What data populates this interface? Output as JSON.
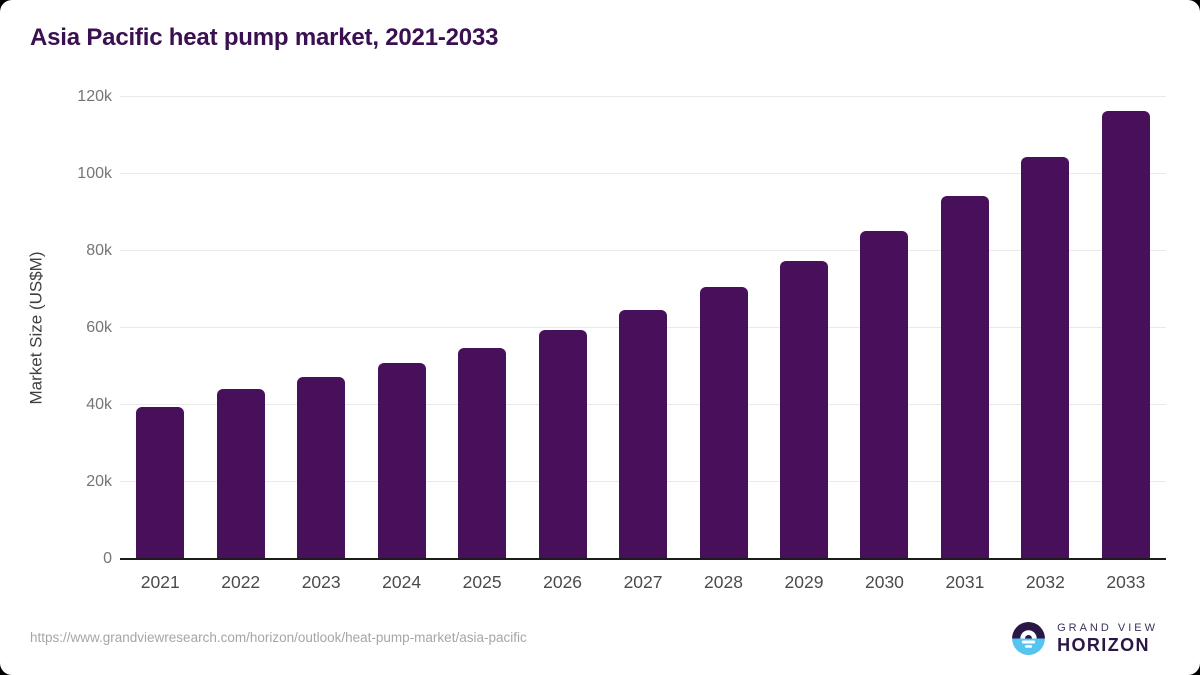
{
  "page": {
    "title": "Asia Pacific heat pump market, 2021-2033",
    "source_url": "https://www.grandviewresearch.com/horizon/outlook/heat-pump-market/asia-pacific"
  },
  "chart_data": {
    "type": "bar",
    "title": "Asia Pacific heat pump market, 2021-2033",
    "categories": [
      "2021",
      "2022",
      "2023",
      "2024",
      "2025",
      "2026",
      "2027",
      "2028",
      "2029",
      "2030",
      "2031",
      "2032",
      "2033"
    ],
    "values": [
      39500,
      44200,
      47200,
      50900,
      54800,
      59400,
      64800,
      70700,
      77400,
      85300,
      94300,
      104400,
      116300
    ],
    "xlabel": "",
    "ylabel": "Market Size (US$M)",
    "ylim": [
      0,
      120000
    ],
    "ytick_values": [
      0,
      20000,
      40000,
      60000,
      80000,
      100000,
      120000
    ],
    "ytick_labels": [
      "0",
      "20k",
      "40k",
      "60k",
      "80k",
      "100k",
      "120k"
    ],
    "grid": "horizontal",
    "legend": "none",
    "bar_color": "#48105A",
    "title_color": "#3A1052"
  },
  "branding": {
    "logo_line1": "GRAND VIEW",
    "logo_line2": "HORIZON",
    "icon_name": "horizon-sun-icon",
    "icon_dark_color": "#2A1745",
    "icon_blue_color": "#56C4F0"
  }
}
